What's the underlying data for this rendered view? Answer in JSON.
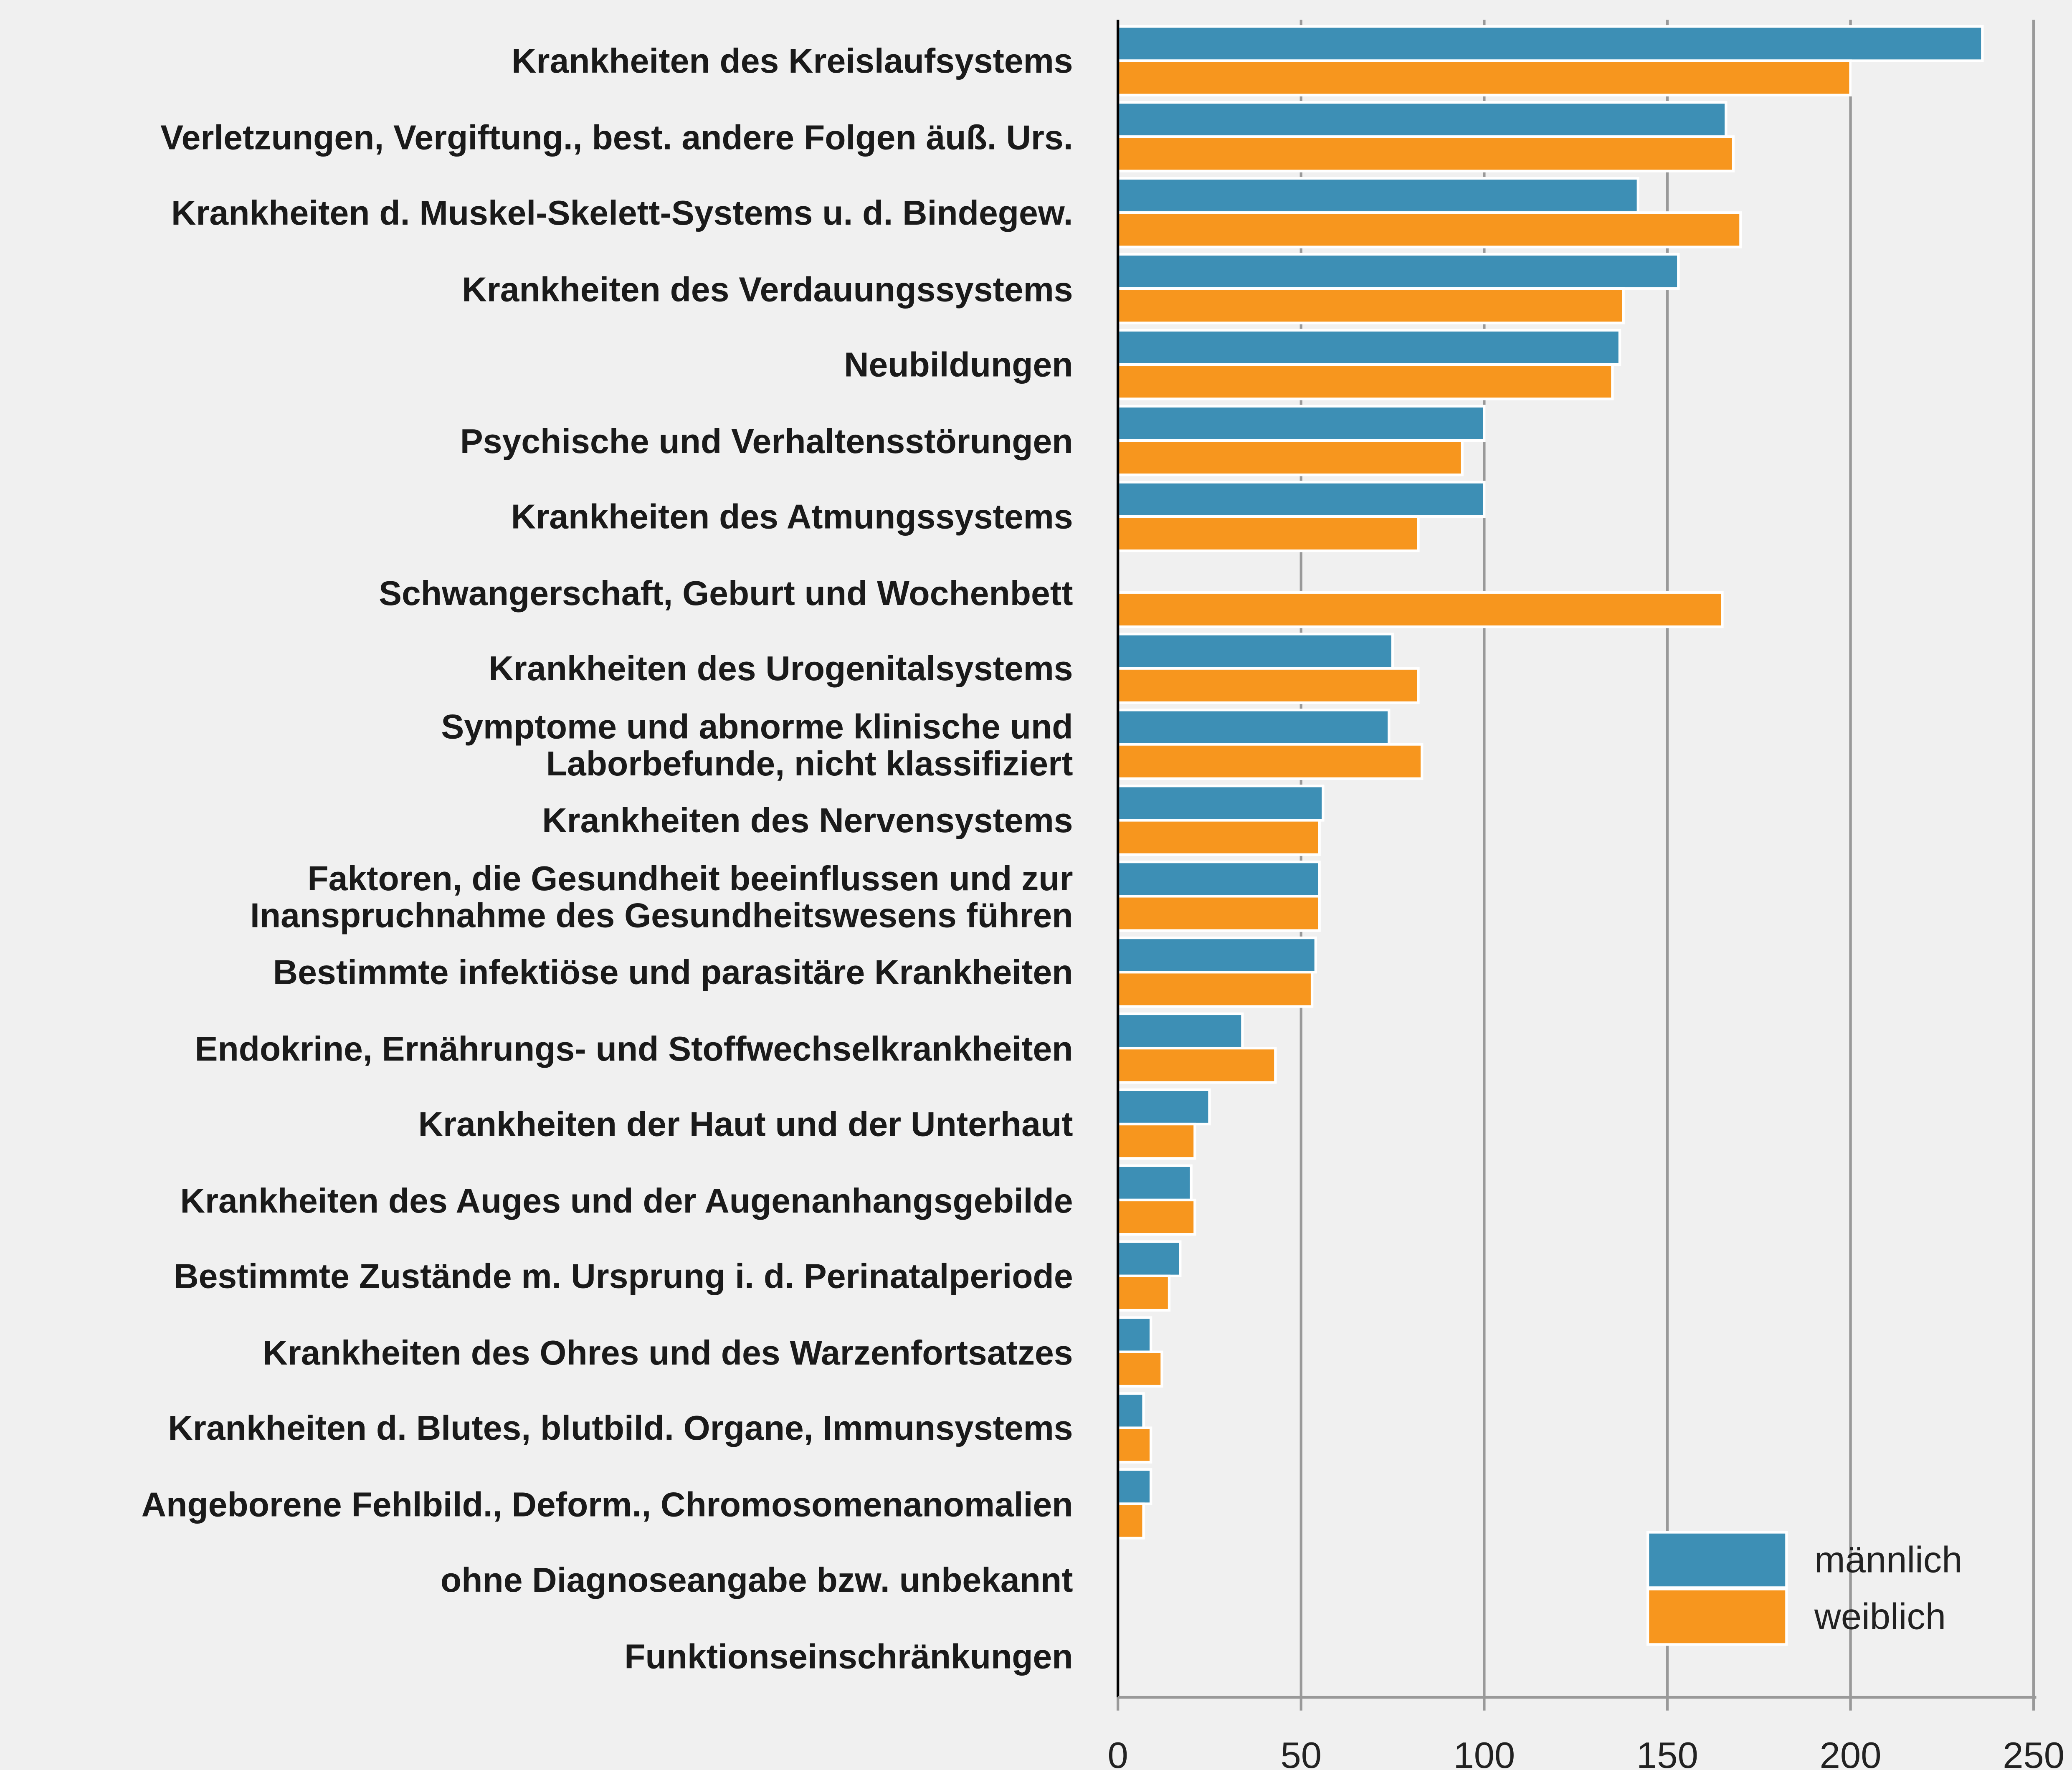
{
  "chart_data": {
    "type": "bar",
    "orientation": "horizontal",
    "categories": [
      "Krankheiten des Kreislaufsystems",
      "Verletzungen, Vergiftung., best. andere Folgen äuß. Urs.",
      "Krankheiten d. Muskel-Skelett-Systems u. d. Bindegew.",
      "Krankheiten des Verdauungssystems",
      "Neubildungen",
      "Psychische und Verhaltensstörungen",
      "Krankheiten des Atmungssystems",
      "Schwangerschaft, Geburt und Wochenbett",
      "Krankheiten des Urogenitalsystems",
      "Symptome und abnorme klinische und\nLaborbefunde, nicht klassifiziert",
      "Krankheiten des Nervensystems",
      "Faktoren, die Gesundheit beeinflussen und zur\nInanspruchnahme des Gesundheitswesens führen",
      "Bestimmte infektiöse und parasitäre Krankheiten",
      "Endokrine, Ernährungs- und Stoffwechselkrankheiten",
      "Krankheiten der Haut und der Unterhaut",
      "Krankheiten des Auges und der Augenanhangsgebilde",
      "Bestimmte Zustände m. Ursprung i. d. Perinatalperiode",
      "Krankheiten des Ohres und des Warzenfortsatzes",
      "Krankheiten d. Blutes, blutbild. Organe, Immunsystems",
      "Angeborene Fehlbild., Deform., Chromosomenanomalien",
      "ohne Diagnoseangabe bzw. unbekannt",
      "Funktionseinschränkungen"
    ],
    "series": [
      {
        "name": "männlich",
        "color": "#3d8fb5",
        "values": [
          236,
          166,
          142,
          153,
          137,
          100,
          100,
          null,
          75,
          74,
          56,
          55,
          54,
          34,
          25,
          20,
          17,
          9,
          7,
          9,
          null,
          null
        ]
      },
      {
        "name": "weiblich",
        "color": "#f7961e",
        "values": [
          200,
          168,
          170,
          138,
          135,
          94,
          82,
          165,
          82,
          83,
          55,
          55,
          53,
          43,
          21,
          21,
          14,
          12,
          9,
          7,
          null,
          null
        ]
      }
    ],
    "xlim": [
      0,
      250
    ],
    "xticks": [
      0,
      50,
      100,
      150,
      200,
      250
    ],
    "grid": true,
    "legend": "lower right"
  }
}
